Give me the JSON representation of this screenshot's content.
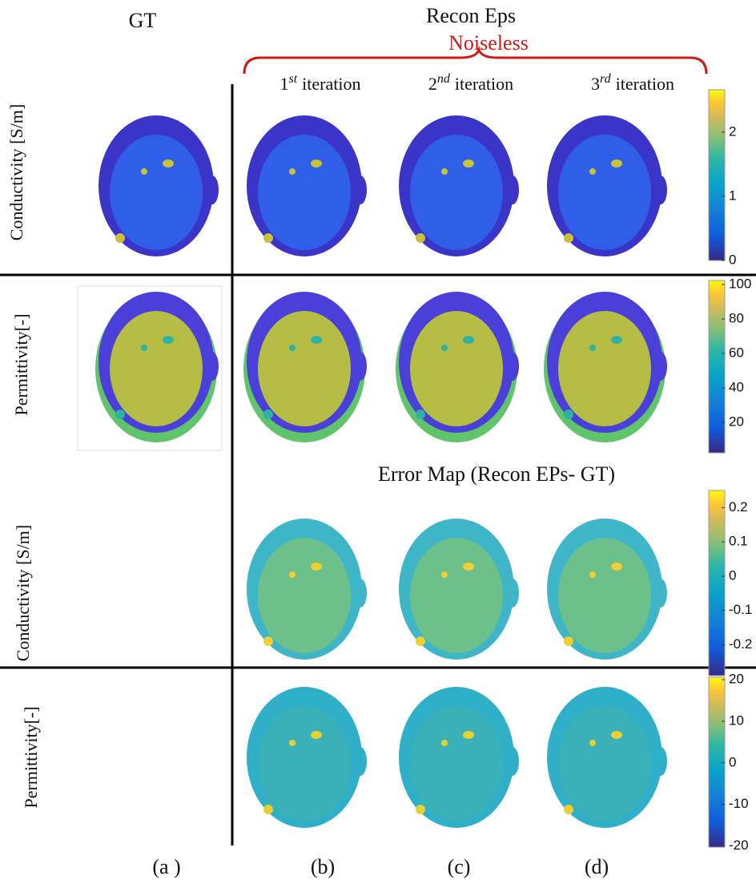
{
  "header": {
    "gt": "GT",
    "recon": "Recon Eps",
    "condition": "Noiseless",
    "error_title": "Error Map (Recon EPs- GT)"
  },
  "columns": [
    {
      "number": "1",
      "suffix": "st",
      "text": "iteration"
    },
    {
      "number": "2",
      "suffix": "nd",
      "text": "iteration"
    },
    {
      "number": "3",
      "suffix": "rd",
      "text": "iteration"
    }
  ],
  "row_labels": [
    "Conductivity [S/m]",
    "Permittivity[-]",
    "Conductivity [S/m]",
    "Permittivity[-]"
  ],
  "panel_labels": [
    "(a )",
    "(b)",
    "(c)",
    "(d)"
  ],
  "colorbars": [
    {
      "lim": [
        0,
        2.66
      ],
      "ticks": [
        0,
        1,
        2
      ]
    },
    {
      "lim": [
        2.3,
        102.3
      ],
      "ticks": [
        20,
        40,
        60,
        80,
        100
      ]
    },
    {
      "lim": [
        -0.29,
        0.25
      ],
      "ticks": [
        -0.2,
        -0.1,
        0,
        0.1,
        0.2
      ]
    },
    {
      "lim": [
        -20.3,
        20.6
      ],
      "ticks": [
        -20,
        -10,
        0,
        10,
        20
      ]
    }
  ]
}
